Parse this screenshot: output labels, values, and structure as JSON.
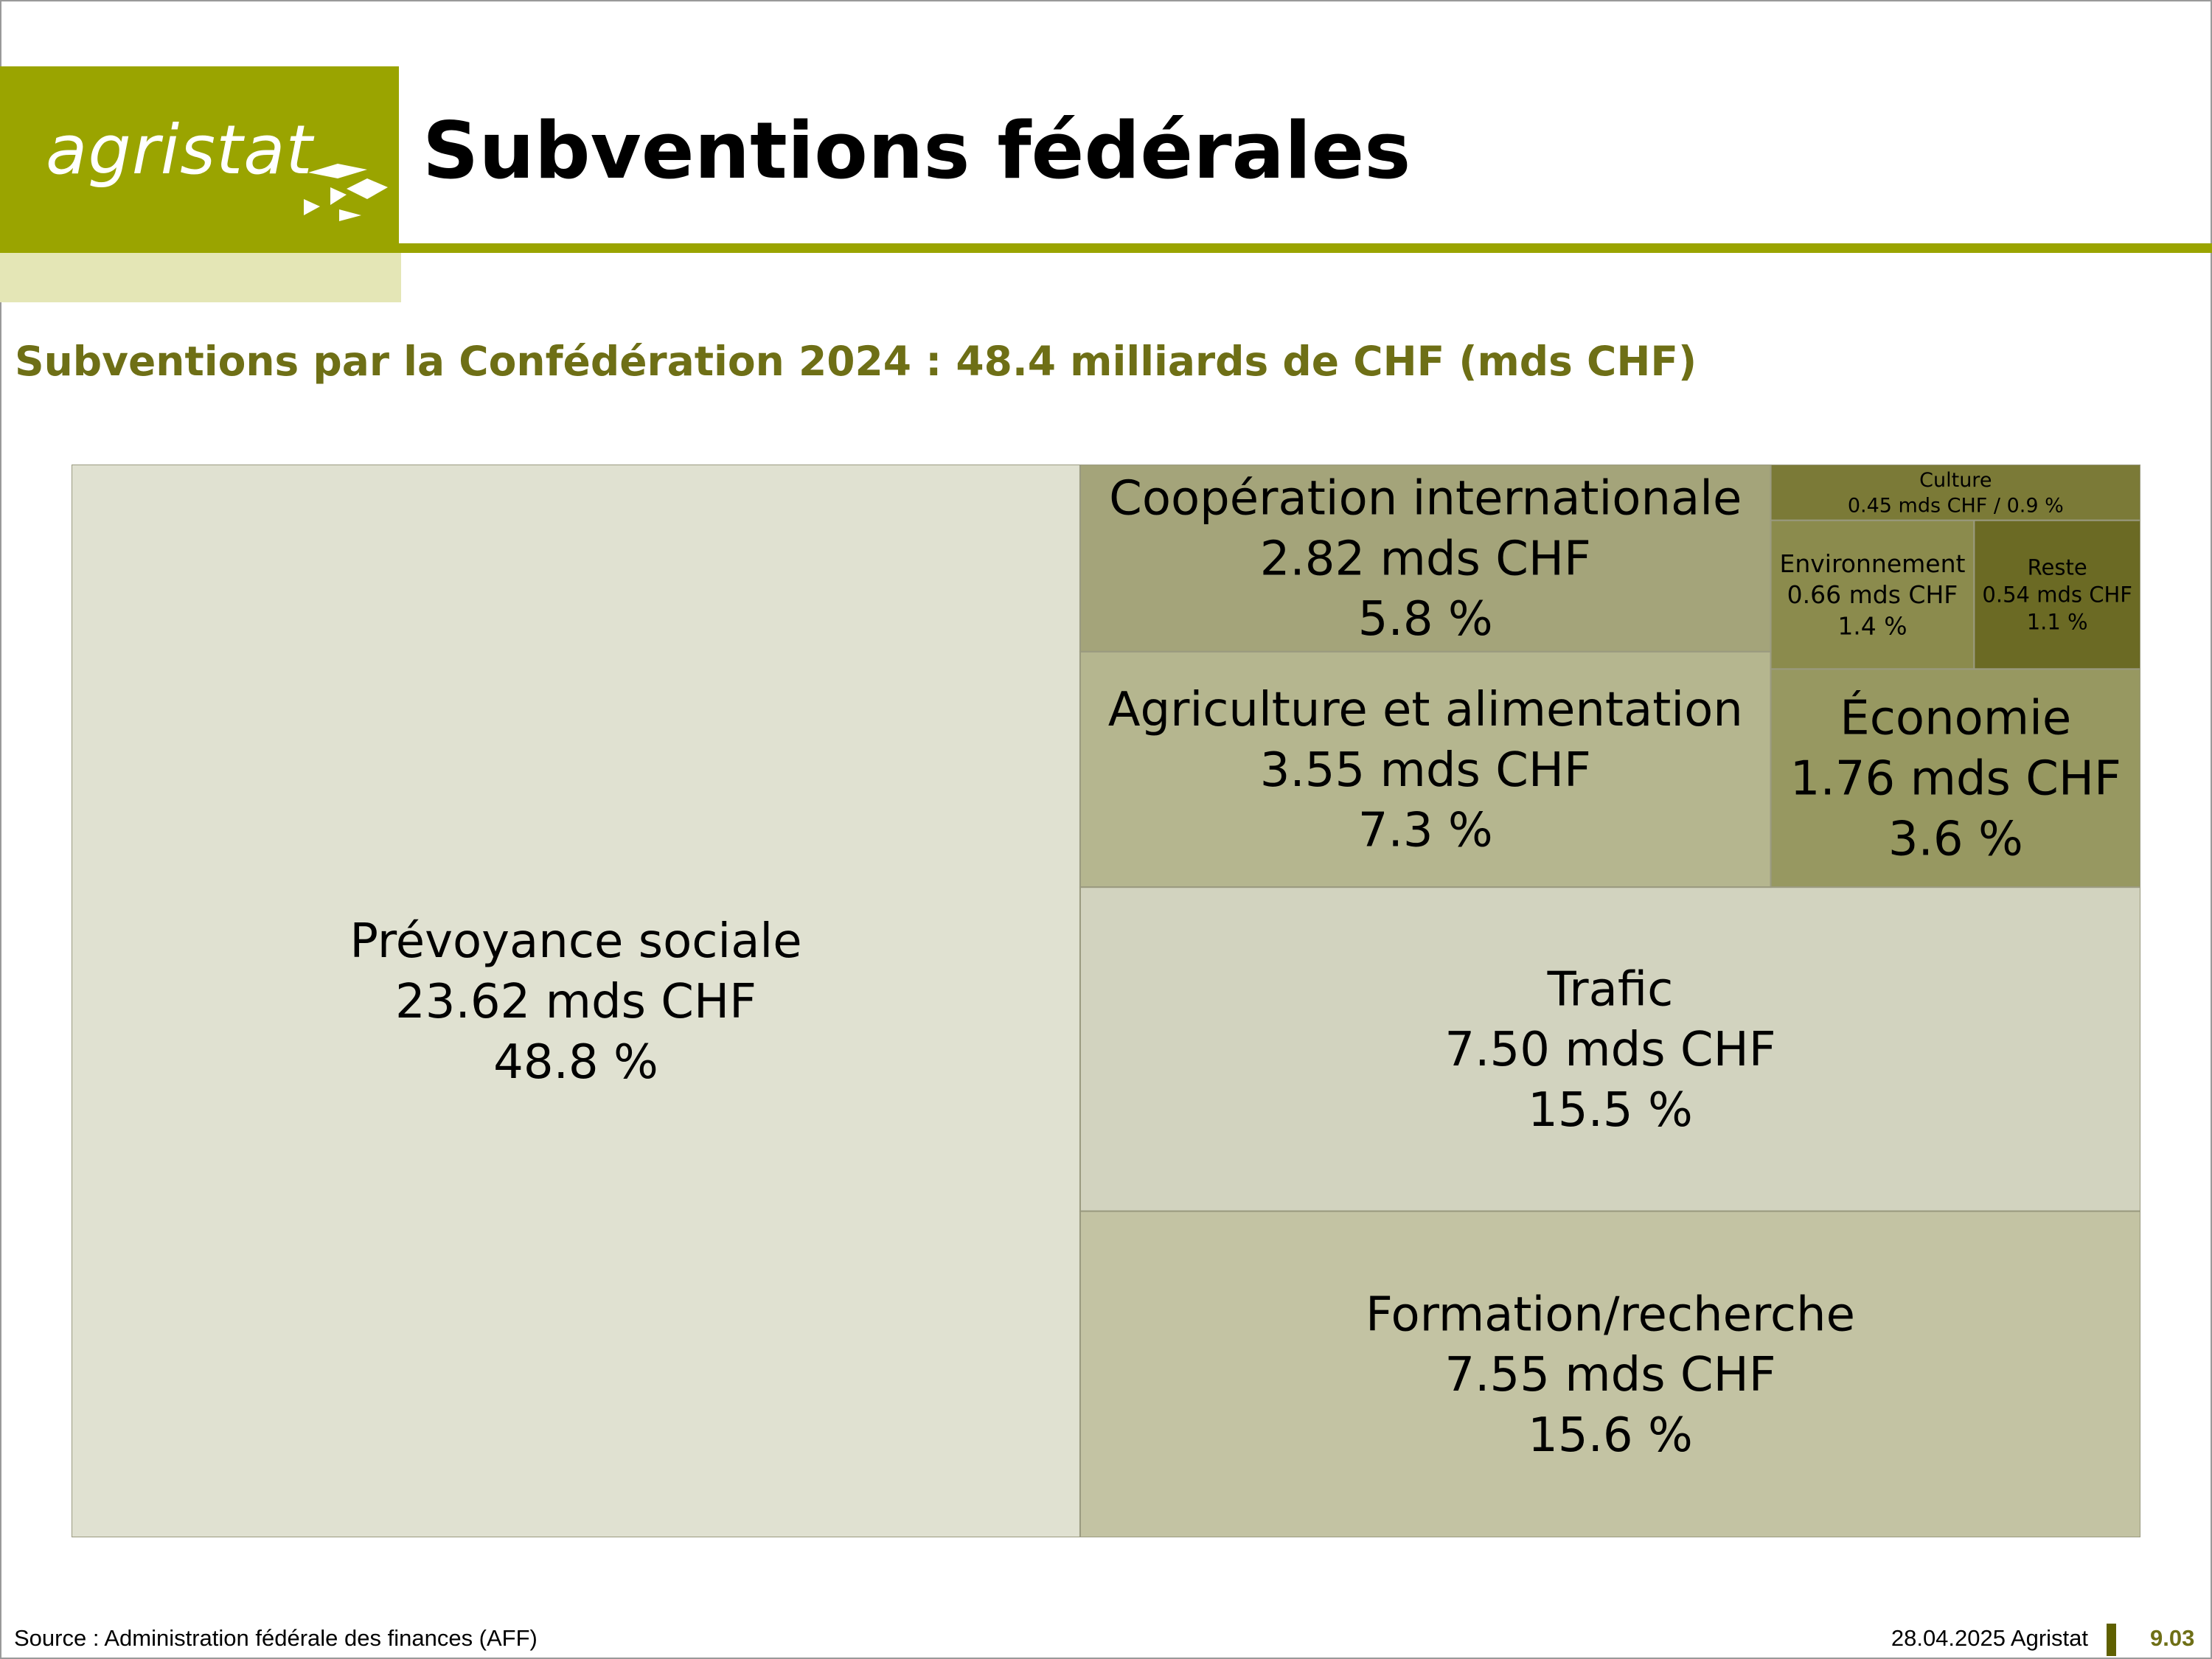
{
  "header": {
    "logo_text": "agristat",
    "title": "Subventions fédérales",
    "subtitle": "Subventions par la Confédération 2024 : 48.4 milliards de CHF (mds CHF)"
  },
  "chart_data": {
    "type": "treemap",
    "title": "Subventions par la Confédération 2024 : 48.4 milliards de CHF (mds CHF)",
    "total": 48.4,
    "unit": "mds CHF",
    "items": [
      {
        "name": "Prévoyance sociale",
        "value": 23.62,
        "percent": 48.8,
        "value_label": "23.62 mds CHF",
        "percent_label": "48.8 %",
        "color": "#e0e1d1"
      },
      {
        "name": "Formation/recherche",
        "value": 7.55,
        "percent": 15.6,
        "value_label": "7.55 mds CHF",
        "percent_label": "15.6 %",
        "color": "#c3c3a3"
      },
      {
        "name": "Trafic",
        "value": 7.5,
        "percent": 15.5,
        "value_label": "7.50 mds CHF",
        "percent_label": "15.5 %",
        "color": "#d2d3bf"
      },
      {
        "name": "Agriculture et alimentation",
        "value": 3.55,
        "percent": 7.3,
        "value_label": "3.55 mds CHF",
        "percent_label": "7.3 %",
        "color": "#b5b68f"
      },
      {
        "name": "Coopération internationale",
        "value": 2.82,
        "percent": 5.8,
        "value_label": "2.82 mds CHF",
        "percent_label": "5.8 %",
        "color": "#a4a47a"
      },
      {
        "name": "Économie",
        "value": 1.76,
        "percent": 3.6,
        "value_label": "1.76 mds CHF",
        "percent_label": "3.6 %",
        "color": "#979861"
      },
      {
        "name": "Environnement",
        "value": 0.66,
        "percent": 1.4,
        "value_label": "0.66 mds CHF",
        "percent_label": "1.4 %",
        "color": "#8b8b4d"
      },
      {
        "name": "Reste",
        "value": 0.54,
        "percent": 1.1,
        "value_label": "0.54 mds CHF",
        "percent_label": "1.1 %",
        "color": "#6b6a24"
      },
      {
        "name": "Culture",
        "value": 0.45,
        "percent": 0.9,
        "value_label": "0.45 mds CHF / 0.9 %",
        "percent_label": "",
        "color": "#7b7a37"
      }
    ]
  },
  "footer": {
    "source": "Source : Administration fédérale des finances (AFF)",
    "date": "28.04.2025 Agristat",
    "page": "9.03"
  }
}
